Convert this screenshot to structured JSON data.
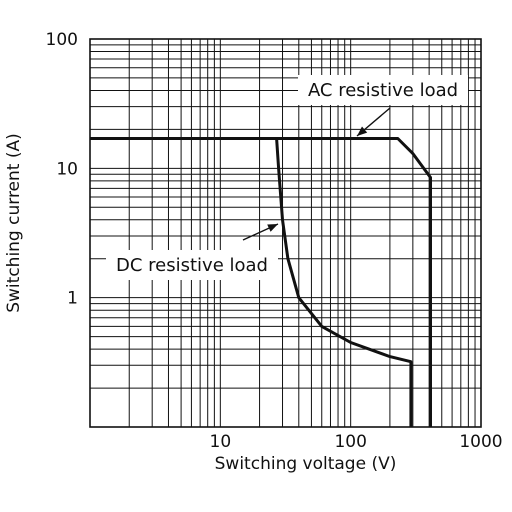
{
  "chart_data": {
    "type": "line",
    "title": "",
    "xlabel": "Switching voltage (V)",
    "ylabel": "Switching current (A)",
    "x_scale": "log",
    "y_scale": "log",
    "xlim": [
      1,
      1000
    ],
    "ylim": [
      0.1,
      100
    ],
    "x_ticks": [
      {
        "value": 10,
        "label": "10"
      },
      {
        "value": 100,
        "label": "100"
      },
      {
        "value": 1000,
        "label": "1000"
      }
    ],
    "y_ticks": [
      {
        "value": 1,
        "label": "1"
      },
      {
        "value": 10,
        "label": "10"
      },
      {
        "value": 100,
        "label": "100"
      }
    ],
    "grid": true,
    "series": [
      {
        "name": "AC resistive load",
        "color": "#111111",
        "points": [
          [
            1,
            17
          ],
          [
            230,
            17
          ],
          [
            300,
            13
          ],
          [
            410,
            8.5
          ],
          [
            410,
            0.1
          ]
        ]
      },
      {
        "name": "DC resistive load",
        "color": "#111111",
        "points": [
          [
            27,
            17
          ],
          [
            28,
            10
          ],
          [
            30,
            4
          ],
          [
            33,
            2
          ],
          [
            40,
            1
          ],
          [
            60,
            0.6
          ],
          [
            100,
            0.45
          ],
          [
            200,
            0.35
          ],
          [
            290,
            0.32
          ],
          [
            290,
            0.1
          ]
        ]
      }
    ],
    "annotations": [
      {
        "text": "AC resistive load",
        "series": 0
      },
      {
        "text": "DC resistive load",
        "series": 1
      }
    ]
  }
}
